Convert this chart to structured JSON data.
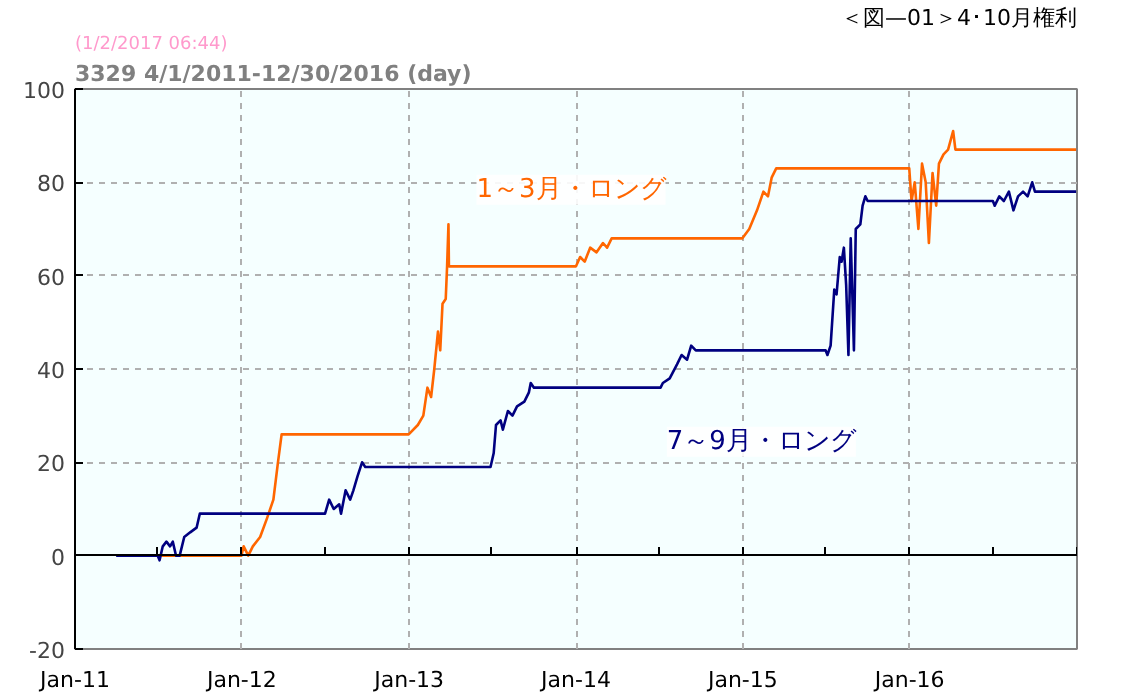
{
  "chart_data": {
    "type": "line",
    "title": "3329 4/1/2011-12/30/2016 (day)",
    "annotations": [
      "(1/2/2017 06:44)",
      "＜図—01＞4･10月権利"
    ],
    "xlim": [
      "2011-01-01",
      "2017-01-01"
    ],
    "xticks": [
      {
        "value": "2011-01-01",
        "label": "Jan-11"
      },
      {
        "value": "2011-07-01",
        "label": null
      },
      {
        "value": "2012-01-01",
        "label": "Jan-12"
      },
      {
        "value": "2012-07-01",
        "label": null
      },
      {
        "value": "2013-01-01",
        "label": "Jan-13"
      },
      {
        "value": "2013-07-01",
        "label": null
      },
      {
        "value": "2014-01-01",
        "label": "Jan-14"
      },
      {
        "value": "2014-07-01",
        "label": null
      },
      {
        "value": "2015-01-01",
        "label": "Jan-15"
      },
      {
        "value": "2015-07-01",
        "label": null
      },
      {
        "value": "2016-01-01",
        "label": "Jan-16"
      },
      {
        "value": "2016-07-01",
        "label": null
      },
      {
        "value": "2017-01-01",
        "label": null
      }
    ],
    "ylim": [
      -20,
      100
    ],
    "yticks": [
      -20,
      0,
      20,
      40,
      60,
      80,
      100
    ],
    "grid": true,
    "legend": false,
    "marker": "none",
    "line_style": "solid",
    "series": [
      {
        "name": "1～3月・ロング",
        "color": "#ff6600",
        "x": [
          "2011-07-01",
          "2011-12-31",
          "2012-01-05",
          "2012-01-15",
          "2012-01-25",
          "2012-02-10",
          "2012-02-25",
          "2012-03-10",
          "2012-03-20",
          "2012-03-28",
          "2012-12-31",
          "2013-01-20",
          "2013-02-01",
          "2013-02-10",
          "2013-02-18",
          "2013-02-25",
          "2013-03-05",
          "2013-03-10",
          "2013-03-15",
          "2013-03-22",
          "2013-03-25",
          "2013-03-28",
          "2013-03-29",
          "2014-01-01",
          "2014-01-10",
          "2014-01-20",
          "2014-02-01",
          "2014-02-15",
          "2014-03-01",
          "2014-03-10",
          "2014-03-20",
          "2014-12-31",
          "2015-01-15",
          "2015-02-01",
          "2015-02-15",
          "2015-02-25",
          "2015-03-05",
          "2015-03-15",
          "2015-12-31",
          "2016-01-05",
          "2016-01-12",
          "2016-01-20",
          "2016-01-28",
          "2016-02-05",
          "2016-02-12",
          "2016-02-20",
          "2016-02-28",
          "2016-03-05",
          "2016-03-15",
          "2016-03-25",
          "2016-04-05",
          "2016-04-10",
          "2016-12-30"
        ],
        "values": [
          0,
          0,
          2,
          0,
          2,
          4,
          8,
          12,
          20,
          26,
          26,
          28,
          30,
          36,
          34,
          40,
          48,
          44,
          54,
          55,
          62,
          71,
          62,
          62,
          64,
          63,
          66,
          65,
          67,
          66,
          68,
          68,
          70,
          74,
          78,
          77,
          81,
          83,
          83,
          76,
          80,
          70,
          84,
          80,
          67,
          82,
          75,
          84,
          86,
          87,
          91,
          87,
          87
        ]
      },
      {
        "name": "7～9月・ロング",
        "color": "#000080",
        "x": [
          "2011-04-01",
          "2011-07-01",
          "2011-07-05",
          "2011-07-12",
          "2011-07-20",
          "2011-07-28",
          "2011-08-03",
          "2011-08-10",
          "2011-08-18",
          "2011-08-28",
          "2011-09-10",
          "2011-09-24",
          "2011-10-01",
          "2012-07-01",
          "2012-07-10",
          "2012-07-20",
          "2012-08-01",
          "2012-08-05",
          "2012-08-15",
          "2012-08-25",
          "2012-09-01",
          "2012-09-10",
          "2012-09-20",
          "2012-09-27",
          "2013-06-28",
          "2013-07-05",
          "2013-07-10",
          "2013-07-20",
          "2013-07-25",
          "2013-08-05",
          "2013-08-15",
          "2013-08-25",
          "2013-09-10",
          "2013-09-20",
          "2013-09-24",
          "2013-10-01",
          "2014-07-05",
          "2014-07-10",
          "2014-07-25",
          "2014-08-10",
          "2014-08-20",
          "2014-09-01",
          "2014-09-10",
          "2014-09-20",
          "2015-07-01",
          "2015-07-05",
          "2015-07-12",
          "2015-07-20",
          "2015-07-25",
          "2015-08-01",
          "2015-08-05",
          "2015-08-10",
          "2015-08-15",
          "2015-08-20",
          "2015-08-25",
          "2015-09-01",
          "2015-09-05",
          "2015-09-15",
          "2015-09-20",
          "2015-09-26",
          "2015-10-01",
          "2016-07-01",
          "2016-07-05",
          "2016-07-15",
          "2016-07-25",
          "2016-08-05",
          "2016-08-15",
          "2016-08-25",
          "2016-09-05",
          "2016-09-15",
          "2016-09-25",
          "2016-10-01",
          "2016-12-30"
        ],
        "values": [
          0,
          0,
          -1,
          2,
          3,
          2,
          3,
          0,
          0,
          4,
          5,
          6,
          9,
          9,
          12,
          10,
          11,
          9,
          14,
          12,
          14,
          17,
          20,
          19,
          19,
          22,
          28,
          29,
          27,
          31,
          30,
          32,
          33,
          35,
          37,
          36,
          36,
          37,
          38,
          41,
          43,
          42,
          45,
          44,
          44,
          43,
          45,
          57,
          56,
          64,
          63,
          66,
          58,
          43,
          68,
          44,
          70,
          71,
          75,
          77,
          76,
          76,
          75,
          77,
          76,
          78,
          74,
          77,
          78,
          77,
          80,
          78,
          78
        ]
      }
    ]
  }
}
